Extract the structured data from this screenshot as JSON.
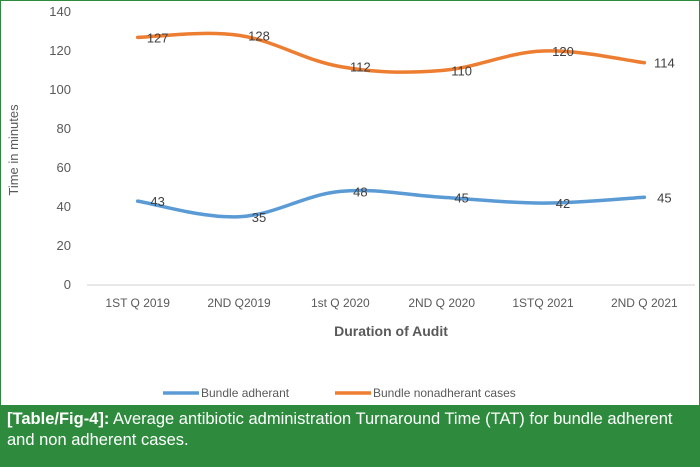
{
  "chart_data": {
    "type": "line",
    "categories": [
      "1ST Q 2019",
      "2ND Q2019",
      "1st Q 2020",
      "2ND Q 2020",
      "1STQ 2021",
      "2ND Q 2021"
    ],
    "series": [
      {
        "name": "Bundle adherant",
        "values": [
          43,
          35,
          48,
          45,
          42,
          45
        ],
        "color": "#5b9bd5"
      },
      {
        "name": "Bundle nonadherant cases",
        "values": [
          127,
          128,
          112,
          110,
          120,
          114
        ],
        "color": "#ed7d31"
      }
    ],
    "xlabel": "Duration of Audit",
    "ylabel": "Time in minutes",
    "ylim": [
      0,
      140
    ],
    "yticks": [
      0,
      20,
      40,
      60,
      80,
      100,
      120,
      140
    ],
    "grid": false,
    "legend": "bottom"
  },
  "caption": {
    "lead": "[Table/Fig-4]:",
    "text": " Average antibiotic administration Turnaround Time (TAT) for bundle adherent and non adherent cases."
  }
}
